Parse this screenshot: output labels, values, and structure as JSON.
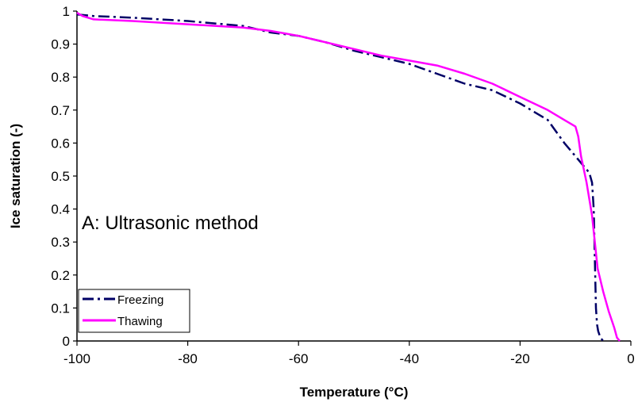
{
  "chart_data": {
    "type": "line",
    "title": "",
    "xlabel": "Temperature (°C)",
    "ylabel": "Ice saturation (-)",
    "xlim": [
      -100,
      0
    ],
    "ylim": [
      0,
      1
    ],
    "xticks": [
      -100,
      -80,
      -60,
      -40,
      -20,
      0
    ],
    "yticks": [
      0,
      0.1,
      0.2,
      0.3,
      0.4,
      0.5,
      0.6,
      0.7,
      0.8,
      0.9,
      1
    ],
    "xtick_labels": [
      "-100",
      "-80",
      "-60",
      "-40",
      "-20",
      "0"
    ],
    "ytick_labels": [
      "0",
      "0.1",
      "0.2",
      "0.3",
      "0.4",
      "0.5",
      "0.6",
      "0.7",
      "0.8",
      "0.9",
      "1"
    ],
    "grid": false,
    "legend": "bottom-left",
    "annotation": "A: Ultrasonic method",
    "series": [
      {
        "name": "Freezing",
        "color": "#000066",
        "style": "dash-dot",
        "x": [
          -100,
          -97,
          -90,
          -80,
          -70,
          -65,
          -60,
          -55,
          -50,
          -45,
          -40,
          -35,
          -30,
          -25,
          -20,
          -15,
          -12,
          -10,
          -9,
          -8,
          -7.5,
          -7,
          -6.7,
          -6.5,
          -6.3,
          -6.1,
          -5.9,
          -5.5,
          -5
        ],
        "y": [
          0.99,
          0.985,
          0.98,
          0.97,
          0.955,
          0.935,
          0.925,
          0.905,
          0.88,
          0.86,
          0.84,
          0.81,
          0.78,
          0.76,
          0.72,
          0.67,
          0.6,
          0.56,
          0.54,
          0.52,
          0.51,
          0.48,
          0.4,
          0.25,
          0.1,
          0.05,
          0.03,
          0.01,
          0
        ]
      },
      {
        "name": "Thawing",
        "color": "#ff00ff",
        "style": "solid",
        "x": [
          -100,
          -99,
          -97,
          -90,
          -80,
          -70,
          -65,
          -60,
          -55,
          -50,
          -45,
          -40,
          -35,
          -30,
          -25,
          -20,
          -15,
          -12,
          -10,
          -9.5,
          -9,
          -8,
          -7,
          -6.5,
          -6,
          -5,
          -4,
          -3,
          -2.5,
          -2
        ],
        "y": [
          0.995,
          0.985,
          0.975,
          0.97,
          0.96,
          0.95,
          0.94,
          0.925,
          0.905,
          0.885,
          0.865,
          0.85,
          0.835,
          0.81,
          0.78,
          0.74,
          0.7,
          0.67,
          0.65,
          0.62,
          0.56,
          0.48,
          0.38,
          0.3,
          0.22,
          0.15,
          0.09,
          0.04,
          0.01,
          0
        ]
      }
    ]
  }
}
